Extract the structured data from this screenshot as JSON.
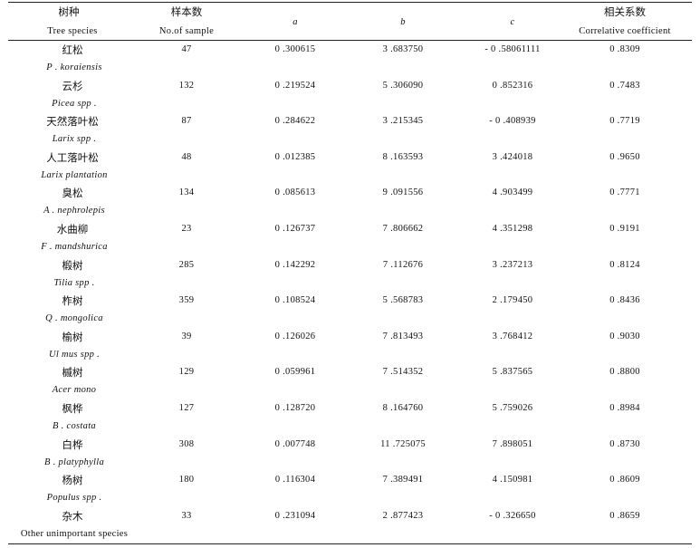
{
  "header": {
    "col1_zh": "树种",
    "col1_en": "Tree species",
    "col2_zh": "样本数",
    "col2_en": "No.of sample",
    "col3": "a",
    "col4": "b",
    "col5": "c",
    "col6_zh": "相关系数",
    "col6_en": "Correlative coefficient"
  },
  "rows": [
    {
      "zh": "红松",
      "sci": "P . koraiensis",
      "n": "47",
      "a": "0 .300615",
      "b": "3 .683750",
      "c": "- 0 .58061111",
      "r": "0 .8309"
    },
    {
      "zh": "云杉",
      "sci": "Picea spp .",
      "n": "132",
      "a": "0 .219524",
      "b": "5 .306090",
      "c": "0 .852316",
      "r": "0 .7483"
    },
    {
      "zh": "天然落叶松",
      "sci": "Larix spp .",
      "n": "87",
      "a": "0 .284622",
      "b": "3 .215345",
      "c": "- 0 .408939",
      "r": "0 .7719"
    },
    {
      "zh": "人工落叶松",
      "sci": "Larix plantation",
      "n": "48",
      "a": "0 .012385",
      "b": "8 .163593",
      "c": "3 .424018",
      "r": "0 .9650"
    },
    {
      "zh": "臭松",
      "sci": "A . nephrolepis",
      "n": "134",
      "a": "0 .085613",
      "b": "9 .091556",
      "c": "4 .903499",
      "r": "0 .7771"
    },
    {
      "zh": "水曲柳",
      "sci": "F . mandshurica",
      "n": "23",
      "a": "0 .126737",
      "b": "7 .806662",
      "c": "4 .351298",
      "r": "0 .9191"
    },
    {
      "zh": "椴树",
      "sci": "Tilia spp .",
      "n": "285",
      "a": "0 .142292",
      "b": "7 .112676",
      "c": "3 .237213",
      "r": "0 .8124"
    },
    {
      "zh": "柞树",
      "sci": "Q . mongolica",
      "n": "359",
      "a": "0 .108524",
      "b": "5 .568783",
      "c": "2 .179450",
      "r": "0 .8436"
    },
    {
      "zh": "榆树",
      "sci": "Ul mus spp .",
      "n": "39",
      "a": "0 .126026",
      "b": "7 .813493",
      "c": "3 .768412",
      "r": "0 .9030"
    },
    {
      "zh": "槭树",
      "sci": "Acer mono",
      "n": "129",
      "a": "0 .059961",
      "b": "7 .514352",
      "c": "5 .837565",
      "r": "0 .8800"
    },
    {
      "zh": "枫桦",
      "sci": "B . costata",
      "n": "127",
      "a": "0 .128720",
      "b": "8 .164760",
      "c": "5 .759026",
      "r": "0 .8984"
    },
    {
      "zh": "白桦",
      "sci": "B . platyphylla",
      "n": "308",
      "a": "0 .007748",
      "b": "11 .725075",
      "c": "7 .898051",
      "r": "0 .8730"
    },
    {
      "zh": "杨树",
      "sci": "Populus spp .",
      "n": "180",
      "a": "0 .116304",
      "b": "7 .389491",
      "c": "4 .150981",
      "r": "0 .8609"
    },
    {
      "zh": "杂木",
      "sci": "Other unimportant species",
      "n": "33",
      "a": "0 .231094",
      "b": "2 .877423",
      "c": "- 0 .326650",
      "r": "0 .8659"
    }
  ]
}
